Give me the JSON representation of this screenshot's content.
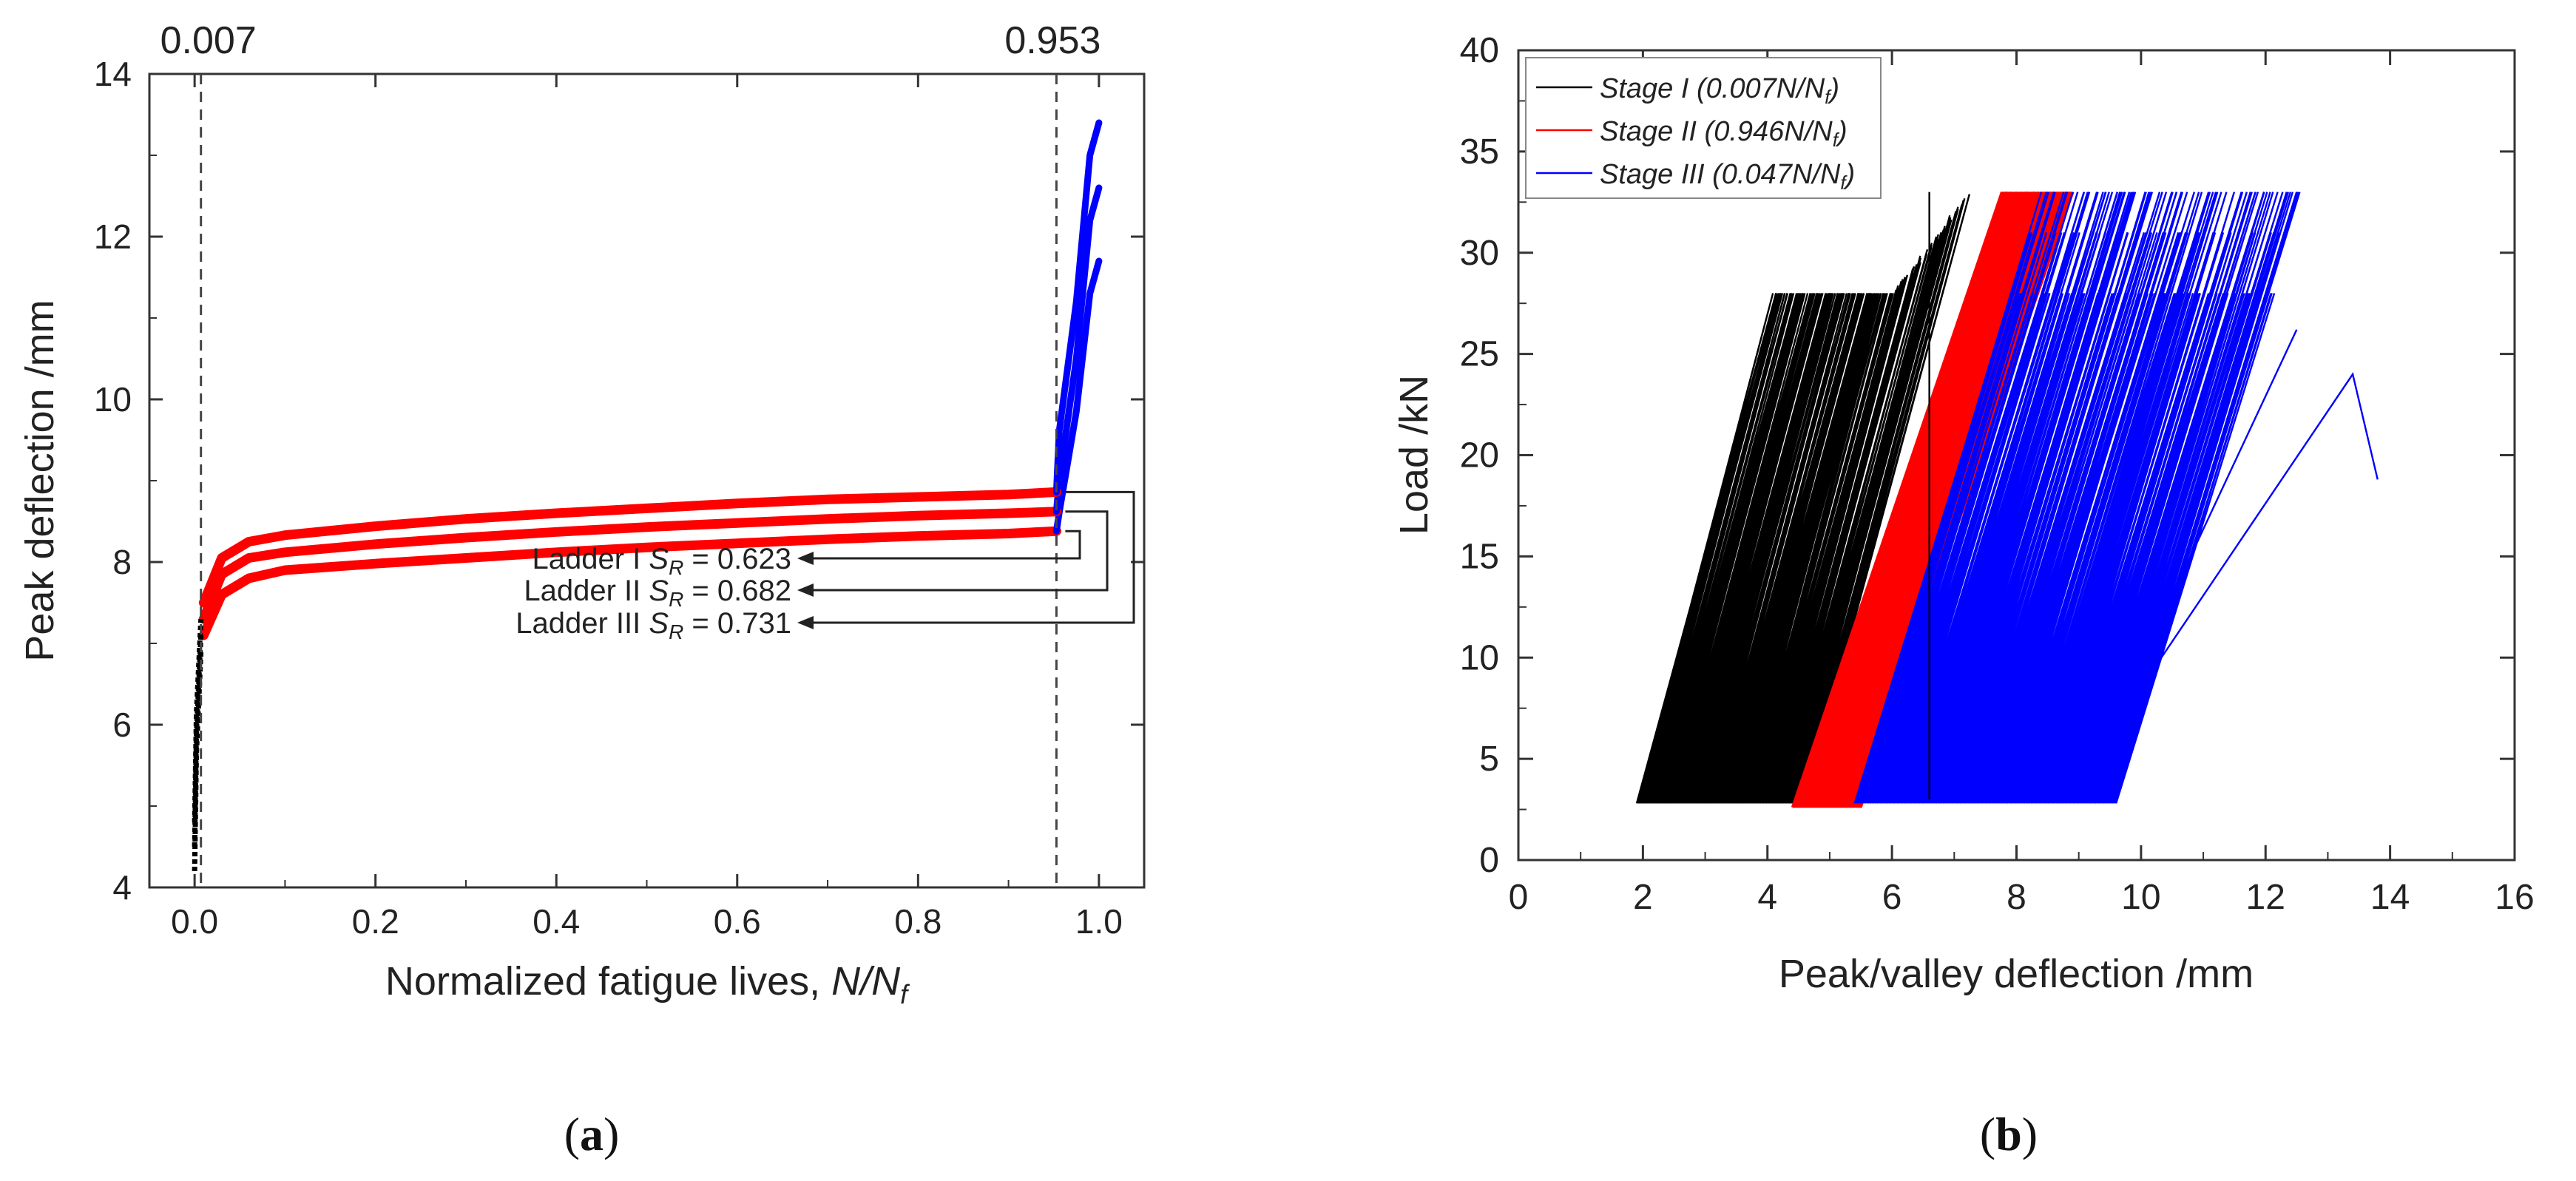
{
  "chart_data": [
    {
      "panel": "(a)",
      "panel_letter": "a",
      "type": "scatter",
      "xlabel": "Normalized fatigue lives, ",
      "xlabel_var": "N/N",
      "xlabel_sub": "f",
      "ylabel": "Peak deflection /mm",
      "xlim": [
        -0.05,
        1.05
      ],
      "ylim": [
        4,
        14
      ],
      "xticks": [
        0.0,
        0.2,
        0.4,
        0.6,
        0.8,
        1.0
      ],
      "xtick_labels": [
        "0.0",
        "0.2",
        "0.4",
        "0.6",
        "0.8",
        "1.0"
      ],
      "yticks": [
        4,
        6,
        8,
        10,
        12,
        14
      ],
      "ytick_labels": [
        "4",
        "6",
        "8",
        "10",
        "12",
        "14"
      ],
      "vlines": [
        {
          "x": 0.007,
          "label": "0.007"
        },
        {
          "x": 0.953,
          "label": "0.953"
        }
      ],
      "stage_colors": {
        "stage1": "#000000",
        "stage2": "#ff0000",
        "stage3": "#0000ff"
      },
      "series": [
        {
          "name": "Ladder I",
          "text": "Ladder I ",
          "sr_label": "S",
          "sr_sub": "R",
          "sr_value": " = 0.623",
          "start_y": 4.2,
          "knee_y": 7.1,
          "points": [
            [
              0.01,
              7.1
            ],
            [
              0.03,
              7.6
            ],
            [
              0.06,
              7.8
            ],
            [
              0.1,
              7.9
            ],
            [
              0.2,
              7.98
            ],
            [
              0.3,
              8.05
            ],
            [
              0.4,
              8.12
            ],
            [
              0.5,
              8.18
            ],
            [
              0.6,
              8.23
            ],
            [
              0.7,
              8.28
            ],
            [
              0.8,
              8.32
            ],
            [
              0.9,
              8.35
            ],
            [
              0.953,
              8.38
            ]
          ],
          "end_y": 8.6,
          "end_top_y": 11.7
        },
        {
          "name": "Ladder II",
          "text": "Ladder II ",
          "sr_label": "S",
          "sr_sub": "R",
          "sr_value": " = 0.682",
          "start_y": 4.5,
          "knee_y": 7.3,
          "points": [
            [
              0.01,
              7.3
            ],
            [
              0.03,
              7.85
            ],
            [
              0.06,
              8.05
            ],
            [
              0.1,
              8.12
            ],
            [
              0.2,
              8.22
            ],
            [
              0.3,
              8.3
            ],
            [
              0.4,
              8.37
            ],
            [
              0.5,
              8.43
            ],
            [
              0.6,
              8.48
            ],
            [
              0.7,
              8.53
            ],
            [
              0.8,
              8.57
            ],
            [
              0.9,
              8.6
            ],
            [
              0.953,
              8.62
            ]
          ],
          "end_y": 9.0,
          "end_top_y": 12.6
        },
        {
          "name": "Ladder III",
          "text": "Ladder III ",
          "sr_label": "S",
          "sr_sub": "R",
          "sr_value": " = 0.731",
          "start_y": 4.8,
          "knee_y": 7.5,
          "points": [
            [
              0.01,
              7.5
            ],
            [
              0.03,
              8.05
            ],
            [
              0.06,
              8.25
            ],
            [
              0.1,
              8.33
            ],
            [
              0.2,
              8.44
            ],
            [
              0.3,
              8.53
            ],
            [
              0.4,
              8.6
            ],
            [
              0.5,
              8.66
            ],
            [
              0.6,
              8.72
            ],
            [
              0.7,
              8.77
            ],
            [
              0.8,
              8.8
            ],
            [
              0.9,
              8.83
            ],
            [
              0.953,
              8.86
            ]
          ],
          "end_y": 9.6,
          "end_top_y": 13.4
        }
      ]
    },
    {
      "panel": "(b)",
      "panel_letter": "b",
      "type": "line",
      "xlabel": "Peak/valley deflection /mm",
      "ylabel": "Load /kN",
      "xlim": [
        0,
        16
      ],
      "ylim": [
        0,
        40
      ],
      "xticks": [
        0,
        2,
        4,
        6,
        8,
        10,
        12,
        14,
        16
      ],
      "xtick_labels": [
        "0",
        "2",
        "4",
        "6",
        "8",
        "10",
        "12",
        "14",
        "16"
      ],
      "yticks": [
        0,
        5,
        10,
        15,
        20,
        25,
        30,
        35,
        40
      ],
      "ytick_labels": [
        "0",
        "5",
        "10",
        "15",
        "20",
        "25",
        "30",
        "35",
        "40"
      ],
      "legend_position": "top-left",
      "series": [
        {
          "name": "Stage I",
          "label_prefix": "Stage I (0.007N/N",
          "label_sub": "f",
          "label_suffix": ")",
          "color": "#000000",
          "valley_load": 2.8,
          "peak_load": 28.0,
          "x_valley_range": [
            1.9,
            4.6
          ],
          "slope_dx": 2.2
        },
        {
          "name": "Stage II",
          "label_prefix": "Stage II (0.946N/N",
          "label_sub": "f",
          "label_suffix": ")",
          "color": "#ff0000",
          "valley_load": 2.6,
          "peak_load": 33.0,
          "x_valley_range": [
            4.4,
            5.5
          ],
          "slope_dx": 3.4
        },
        {
          "name": "Stage III",
          "label_prefix": "Stage III (0.047N/N",
          "label_sub": "f",
          "label_suffix": ")",
          "color": "#0000ff",
          "valley_load": 2.8,
          "peak_load": 33.0,
          "x_valley_range": [
            5.4,
            9.6
          ],
          "slope_dx": 3.0
        }
      ],
      "extra_lines": [
        {
          "color": "#0000ff",
          "points": [
            [
              8.9,
              3.5
            ],
            [
              13.4,
              24.0
            ],
            [
              13.8,
              18.8
            ]
          ]
        },
        {
          "color": "#0000ff",
          "points": [
            [
              9.0,
              3.2
            ],
            [
              12.5,
              26.2
            ]
          ]
        },
        {
          "color": "#000000",
          "points": [
            [
              6.6,
              3.0
            ],
            [
              6.6,
              33.0
            ]
          ]
        }
      ]
    }
  ]
}
